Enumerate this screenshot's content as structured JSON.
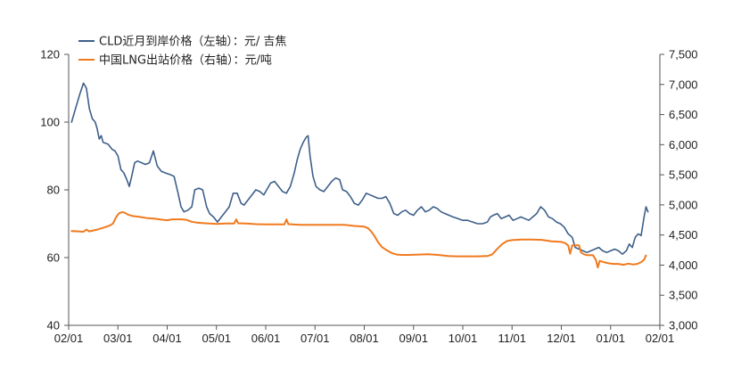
{
  "chart_data": {
    "type": "line",
    "title": "",
    "legend_position": "top-left",
    "grid": false,
    "x_ticks": [
      "02/01",
      "03/01",
      "04/01",
      "05/01",
      "06/01",
      "07/01",
      "08/01",
      "09/01",
      "10/01",
      "11/01",
      "12/01",
      "01/01",
      "02/01"
    ],
    "x_range": [
      0,
      12
    ],
    "y_left": {
      "range": [
        40,
        120
      ],
      "ticks": [
        "40",
        "60",
        "80",
        "100",
        "120"
      ]
    },
    "y_right": {
      "range": [
        3000,
        7500
      ],
      "ticks": [
        "3,000",
        "3,500",
        "4,000",
        "4,500",
        "5,000",
        "5,500",
        "6,000",
        "6,500",
        "7,000",
        "7,500"
      ]
    },
    "series": [
      {
        "name": "CLD近月到岸价格（左轴）：元/ 吉焦",
        "axis": "left",
        "color": "#3e5f8a",
        "points": [
          [
            0.06,
            100
          ],
          [
            0.14,
            104
          ],
          [
            0.22,
            108
          ],
          [
            0.3,
            111.5
          ],
          [
            0.36,
            110
          ],
          [
            0.42,
            104
          ],
          [
            0.48,
            101
          ],
          [
            0.54,
            100
          ],
          [
            0.58,
            98
          ],
          [
            0.62,
            95
          ],
          [
            0.66,
            96
          ],
          [
            0.7,
            94
          ],
          [
            0.8,
            93.5
          ],
          [
            0.88,
            92
          ],
          [
            0.94,
            91.5
          ],
          [
            1.0,
            90
          ],
          [
            1.06,
            86
          ],
          [
            1.12,
            85
          ],
          [
            1.18,
            83
          ],
          [
            1.23,
            81
          ],
          [
            1.28,
            84
          ],
          [
            1.34,
            88
          ],
          [
            1.4,
            88.5
          ],
          [
            1.48,
            88
          ],
          [
            1.56,
            87.5
          ],
          [
            1.64,
            88
          ],
          [
            1.72,
            91.5
          ],
          [
            1.8,
            87
          ],
          [
            1.88,
            85.5
          ],
          [
            1.96,
            85
          ],
          [
            2.06,
            84.5
          ],
          [
            2.14,
            84
          ],
          [
            2.22,
            79
          ],
          [
            2.28,
            75
          ],
          [
            2.34,
            73.5
          ],
          [
            2.42,
            74
          ],
          [
            2.5,
            75
          ],
          [
            2.56,
            80
          ],
          [
            2.64,
            80.5
          ],
          [
            2.72,
            80
          ],
          [
            2.8,
            75
          ],
          [
            2.86,
            73
          ],
          [
            2.94,
            72
          ],
          [
            3.02,
            70.5
          ],
          [
            3.1,
            72
          ],
          [
            3.18,
            73.5
          ],
          [
            3.26,
            75
          ],
          [
            3.34,
            79
          ],
          [
            3.42,
            79
          ],
          [
            3.5,
            76
          ],
          [
            3.56,
            75.5
          ],
          [
            3.64,
            77
          ],
          [
            3.72,
            78.5
          ],
          [
            3.8,
            80
          ],
          [
            3.88,
            79.5
          ],
          [
            3.96,
            78.5
          ],
          [
            4.02,
            80
          ],
          [
            4.1,
            82
          ],
          [
            4.18,
            82.5
          ],
          [
            4.26,
            81
          ],
          [
            4.34,
            79.5
          ],
          [
            4.42,
            79
          ],
          [
            4.5,
            81
          ],
          [
            4.58,
            85
          ],
          [
            4.64,
            89
          ],
          [
            4.7,
            92
          ],
          [
            4.76,
            94
          ],
          [
            4.82,
            95.5
          ],
          [
            4.86,
            96
          ],
          [
            4.9,
            90
          ],
          [
            4.96,
            84
          ],
          [
            5.02,
            81
          ],
          [
            5.1,
            80
          ],
          [
            5.18,
            79.5
          ],
          [
            5.26,
            81
          ],
          [
            5.34,
            82.5
          ],
          [
            5.42,
            83.5
          ],
          [
            5.5,
            83
          ],
          [
            5.56,
            80
          ],
          [
            5.64,
            79.5
          ],
          [
            5.72,
            78
          ],
          [
            5.8,
            76
          ],
          [
            5.88,
            75.5
          ],
          [
            5.96,
            77
          ],
          [
            6.04,
            79
          ],
          [
            6.12,
            78.5
          ],
          [
            6.2,
            78
          ],
          [
            6.28,
            77.5
          ],
          [
            6.36,
            77.5
          ],
          [
            6.44,
            78
          ],
          [
            6.52,
            76
          ],
          [
            6.6,
            73
          ],
          [
            6.68,
            72.5
          ],
          [
            6.76,
            73.5
          ],
          [
            6.84,
            74
          ],
          [
            6.92,
            73
          ],
          [
            7.0,
            72.5
          ],
          [
            7.08,
            74
          ],
          [
            7.16,
            75
          ],
          [
            7.24,
            73.5
          ],
          [
            7.32,
            74
          ],
          [
            7.4,
            75
          ],
          [
            7.48,
            74.5
          ],
          [
            7.56,
            73.5
          ],
          [
            7.64,
            73
          ],
          [
            7.72,
            72.5
          ],
          [
            7.8,
            72
          ],
          [
            7.9,
            71.5
          ],
          [
            8.0,
            71
          ],
          [
            8.1,
            71
          ],
          [
            8.2,
            70.5
          ],
          [
            8.3,
            70
          ],
          [
            8.4,
            70
          ],
          [
            8.5,
            70.5
          ],
          [
            8.56,
            72
          ],
          [
            8.62,
            72.5
          ],
          [
            8.7,
            73
          ],
          [
            8.78,
            71.5
          ],
          [
            8.86,
            72
          ],
          [
            8.94,
            72.5
          ],
          [
            9.02,
            71
          ],
          [
            9.1,
            71.5
          ],
          [
            9.18,
            72
          ],
          [
            9.26,
            71.5
          ],
          [
            9.34,
            71
          ],
          [
            9.42,
            72
          ],
          [
            9.5,
            73
          ],
          [
            9.58,
            75
          ],
          [
            9.66,
            74
          ],
          [
            9.74,
            72
          ],
          [
            9.82,
            71.5
          ],
          [
            9.9,
            70.5
          ],
          [
            9.98,
            70
          ],
          [
            10.06,
            69
          ],
          [
            10.14,
            67
          ],
          [
            10.22,
            66
          ],
          [
            10.28,
            63
          ],
          [
            10.36,
            62.5
          ],
          [
            10.44,
            62
          ],
          [
            10.52,
            61.5
          ],
          [
            10.6,
            62
          ],
          [
            10.68,
            62.5
          ],
          [
            10.76,
            63
          ],
          [
            10.84,
            62
          ],
          [
            10.92,
            61.5
          ],
          [
            11.0,
            62
          ],
          [
            11.08,
            62.5
          ],
          [
            11.16,
            62
          ],
          [
            11.24,
            61
          ],
          [
            11.32,
            62
          ],
          [
            11.38,
            64
          ],
          [
            11.44,
            63
          ],
          [
            11.5,
            66
          ],
          [
            11.56,
            67
          ],
          [
            11.62,
            66.5
          ],
          [
            11.68,
            72
          ],
          [
            11.72,
            75
          ],
          [
            11.76,
            73.5
          ]
        ]
      },
      {
        "name": "中国LNG出站价格（右轴）：元/吨",
        "axis": "right",
        "color": "#f07a1e",
        "points": [
          [
            0.06,
            4565
          ],
          [
            0.2,
            4560
          ],
          [
            0.3,
            4555
          ],
          [
            0.36,
            4590
          ],
          [
            0.42,
            4560
          ],
          [
            0.56,
            4585
          ],
          [
            0.7,
            4620
          ],
          [
            0.84,
            4660
          ],
          [
            0.9,
            4690
          ],
          [
            0.96,
            4790
          ],
          [
            1.02,
            4860
          ],
          [
            1.08,
            4880
          ],
          [
            1.14,
            4870
          ],
          [
            1.2,
            4840
          ],
          [
            1.3,
            4815
          ],
          [
            1.45,
            4800
          ],
          [
            1.6,
            4780
          ],
          [
            1.75,
            4770
          ],
          [
            1.88,
            4755
          ],
          [
            2.0,
            4745
          ],
          [
            2.1,
            4760
          ],
          [
            2.3,
            4760
          ],
          [
            2.4,
            4750
          ],
          [
            2.5,
            4720
          ],
          [
            2.6,
            4705
          ],
          [
            2.7,
            4700
          ],
          [
            2.85,
            4690
          ],
          [
            3.0,
            4685
          ],
          [
            3.2,
            4690
          ],
          [
            3.36,
            4690
          ],
          [
            3.4,
            4760
          ],
          [
            3.44,
            4695
          ],
          [
            3.6,
            4690
          ],
          [
            3.8,
            4680
          ],
          [
            4.0,
            4675
          ],
          [
            4.2,
            4675
          ],
          [
            4.38,
            4675
          ],
          [
            4.42,
            4760
          ],
          [
            4.46,
            4680
          ],
          [
            4.7,
            4670
          ],
          [
            5.0,
            4670
          ],
          [
            5.3,
            4670
          ],
          [
            5.6,
            4670
          ],
          [
            5.8,
            4650
          ],
          [
            6.0,
            4640
          ],
          [
            6.08,
            4610
          ],
          [
            6.14,
            4560
          ],
          [
            6.2,
            4490
          ],
          [
            6.28,
            4380
          ],
          [
            6.36,
            4300
          ],
          [
            6.46,
            4245
          ],
          [
            6.56,
            4200
          ],
          [
            6.66,
            4175
          ],
          [
            6.76,
            4170
          ],
          [
            6.9,
            4170
          ],
          [
            7.1,
            4175
          ],
          [
            7.3,
            4180
          ],
          [
            7.5,
            4170
          ],
          [
            7.7,
            4150
          ],
          [
            7.9,
            4145
          ],
          [
            8.1,
            4145
          ],
          [
            8.3,
            4145
          ],
          [
            8.5,
            4150
          ],
          [
            8.6,
            4180
          ],
          [
            8.7,
            4270
          ],
          [
            8.8,
            4350
          ],
          [
            8.9,
            4400
          ],
          [
            9.0,
            4415
          ],
          [
            9.2,
            4425
          ],
          [
            9.4,
            4425
          ],
          [
            9.6,
            4420
          ],
          [
            9.8,
            4395
          ],
          [
            10.0,
            4385
          ],
          [
            10.08,
            4365
          ],
          [
            10.14,
            4325
          ],
          [
            10.18,
            4190
          ],
          [
            10.22,
            4330
          ],
          [
            10.36,
            4330
          ],
          [
            10.4,
            4210
          ],
          [
            10.46,
            4180
          ],
          [
            10.52,
            4165
          ],
          [
            10.64,
            4165
          ],
          [
            10.7,
            4090
          ],
          [
            10.74,
            3960
          ],
          [
            10.78,
            4070
          ],
          [
            10.86,
            4050
          ],
          [
            10.96,
            4030
          ],
          [
            11.06,
            4020
          ],
          [
            11.16,
            4020
          ],
          [
            11.26,
            4005
          ],
          [
            11.36,
            4025
          ],
          [
            11.46,
            4010
          ],
          [
            11.54,
            4020
          ],
          [
            11.62,
            4050
          ],
          [
            11.68,
            4090
          ],
          [
            11.72,
            4160
          ]
        ]
      }
    ]
  }
}
